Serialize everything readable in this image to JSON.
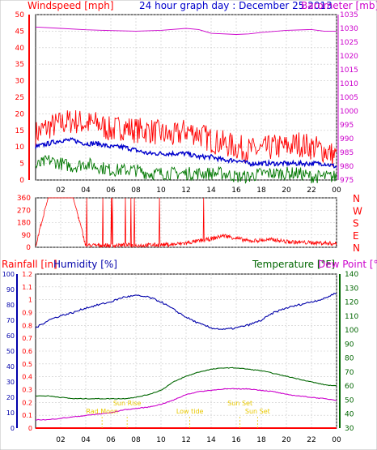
{
  "chart_data": {
    "type": "line",
    "title": "24 hour graph day : December 25 2013",
    "time_ticks": [
      "02",
      "04",
      "06",
      "08",
      "10",
      "12",
      "14",
      "16",
      "18",
      "20",
      "22",
      "00"
    ],
    "colors": {
      "wind": "#ff0000",
      "gust_text": "#ff0000",
      "avg": "#0000cc",
      "low": "#007700",
      "baro": "#cc00cc",
      "dir": "#ff0000",
      "rain": "#ff0000",
      "hum": "#0000aa",
      "temp": "#006600",
      "dew": "#cc00cc",
      "grid": "#c8c8c8",
      "events": "#e8c800"
    },
    "panel_wind": {
      "left_label": "Windspeed [mph]",
      "right_label": "Barometer [mb]",
      "left_ticks": [
        "0",
        "5",
        "10",
        "15",
        "20",
        "25",
        "30",
        "35",
        "40",
        "45",
        "50"
      ],
      "left_range": [
        0,
        50
      ],
      "right_ticks": [
        "975",
        "980",
        "985",
        "990",
        "995",
        "1000",
        "1005",
        "1010",
        "1015",
        "1020",
        "1025",
        "1030",
        "1035"
      ],
      "right_range": [
        975,
        1035
      ],
      "series": [
        {
          "name": "windspeed",
          "x": [
            0,
            1,
            2,
            3,
            4,
            5,
            6,
            7,
            8,
            9,
            10,
            11,
            12,
            13,
            14,
            15,
            16,
            17,
            18,
            19,
            20,
            21,
            22,
            23,
            24
          ],
          "values": [
            14,
            16,
            17,
            18,
            17,
            17,
            15,
            16,
            15,
            15,
            14,
            13,
            15,
            14,
            12,
            11,
            10,
            9,
            9,
            10,
            10,
            11,
            10,
            9,
            7
          ]
        },
        {
          "name": "wind_avg",
          "x": [
            0,
            1,
            2,
            3,
            4,
            5,
            6,
            7,
            8,
            9,
            10,
            11,
            12,
            13,
            14,
            15,
            16,
            17,
            18,
            19,
            20,
            21,
            22,
            23,
            24
          ],
          "values": [
            10,
            11,
            12,
            12,
            11,
            11,
            10,
            10,
            9,
            8,
            8,
            8,
            8,
            7,
            7,
            6,
            6,
            5,
            5,
            5,
            5,
            5,
            5,
            5,
            4
          ]
        },
        {
          "name": "wind_low",
          "x": [
            0,
            1,
            2,
            3,
            4,
            5,
            6,
            7,
            8,
            9,
            10,
            11,
            12,
            13,
            14,
            15,
            16,
            17,
            18,
            19,
            20,
            21,
            22,
            23,
            24
          ],
          "values": [
            4,
            6,
            5,
            4,
            5,
            4,
            3,
            3,
            3,
            2,
            2,
            2,
            2,
            2,
            2,
            2,
            1,
            1,
            2,
            2,
            2,
            2,
            1,
            1,
            1
          ]
        },
        {
          "name": "barometer",
          "x": [
            0,
            2,
            4,
            6,
            8,
            10,
            12,
            13,
            14,
            16,
            17,
            18,
            20,
            22,
            23,
            24
          ],
          "values": [
            1030.5,
            1030,
            1029.5,
            1029.2,
            1029,
            1029.3,
            1030,
            1029.6,
            1028.2,
            1027.8,
            1028,
            1028.5,
            1029.3,
            1029.6,
            1029,
            1029
          ]
        }
      ]
    },
    "panel_dir": {
      "left_ticks": [
        "0",
        "90",
        "180",
        "270",
        "360"
      ],
      "left_range": [
        0,
        360
      ],
      "compass_labels": [
        "N",
        "W",
        "S",
        "E",
        "N"
      ],
      "series": [
        {
          "name": "wind_direction",
          "x": [
            0,
            1,
            2,
            3,
            4,
            5,
            6,
            7,
            8,
            9,
            10,
            11,
            12,
            13,
            14,
            15,
            16,
            17,
            18,
            19,
            20,
            21,
            22,
            23,
            24
          ],
          "values": [
            5,
            360,
            360,
            360,
            8,
            8,
            8,
            10,
            8,
            10,
            12,
            15,
            25,
            40,
            55,
            80,
            60,
            40,
            45,
            50,
            35,
            30,
            28,
            25,
            20
          ]
        }
      ]
    },
    "panel_temp": {
      "rain_label": "Rainfall [in]",
      "hum_label": "Humidity [%]",
      "temp_label": "Temperature [°F]",
      "dew_label": "Dew Point [°F]",
      "rain_ticks": [
        "0",
        "0.1",
        "0.2",
        "0.3",
        "0.4",
        "0.5",
        "0.6",
        "0.7",
        "0.8",
        "0.9",
        "1",
        "1.1",
        "1.2"
      ],
      "rain_range": [
        0,
        1.2
      ],
      "hum_ticks": [
        "0",
        "10",
        "20",
        "30",
        "40",
        "50",
        "60",
        "70",
        "80",
        "90",
        "100"
      ],
      "hum_range": [
        0,
        100
      ],
      "temp_ticks": [
        "30",
        "40",
        "50",
        "60",
        "70",
        "80",
        "90",
        "100",
        "110",
        "120",
        "130",
        "140"
      ],
      "temp_range": [
        30,
        140
      ],
      "series": [
        {
          "name": "humidity",
          "x": [
            0,
            1,
            2,
            3,
            4,
            5,
            6,
            7,
            8,
            9,
            10,
            11,
            12,
            13,
            14,
            15,
            16,
            17,
            18,
            19,
            20,
            21,
            22,
            23,
            24
          ],
          "values": [
            65,
            70,
            73,
            75,
            78,
            80,
            82,
            85,
            86,
            85,
            82,
            77,
            72,
            68,
            65,
            64,
            65,
            67,
            70,
            75,
            78,
            80,
            82,
            84,
            88
          ]
        },
        {
          "name": "temperature",
          "x": [
            0,
            1,
            2,
            3,
            4,
            5,
            6,
            7,
            8,
            9,
            10,
            11,
            12,
            13,
            14,
            15,
            16,
            17,
            18,
            19,
            20,
            21,
            22,
            23,
            24
          ],
          "values": [
            53,
            53,
            52,
            51,
            51,
            51,
            51,
            51,
            52,
            54,
            57,
            63,
            67,
            70,
            72,
            73,
            73,
            72,
            71,
            69,
            67,
            65,
            63,
            61,
            60
          ]
        },
        {
          "name": "dew_point",
          "x": [
            0,
            1,
            2,
            3,
            4,
            5,
            6,
            7,
            8,
            9,
            10,
            11,
            12,
            13,
            14,
            15,
            16,
            17,
            18,
            19,
            20,
            21,
            22,
            23,
            24
          ],
          "values": [
            36,
            36,
            37,
            38,
            39,
            40,
            41,
            43,
            44,
            45,
            47,
            50,
            54,
            56,
            57,
            58,
            58,
            58,
            57,
            56,
            54,
            53,
            52,
            51,
            50
          ]
        },
        {
          "name": "rainfall",
          "x": [
            0,
            24
          ],
          "values": [
            0,
            0
          ]
        }
      ],
      "events": [
        {
          "label": "Rad.Moon",
          "x": 5.3
        },
        {
          "label": "Sun Rise",
          "x": 7.3
        },
        {
          "label": "Low tide",
          "x": 12.3
        },
        {
          "label": "Sun Set",
          "x": 16.3
        },
        {
          "label": "Sun Set",
          "x": 17.7
        }
      ]
    }
  }
}
